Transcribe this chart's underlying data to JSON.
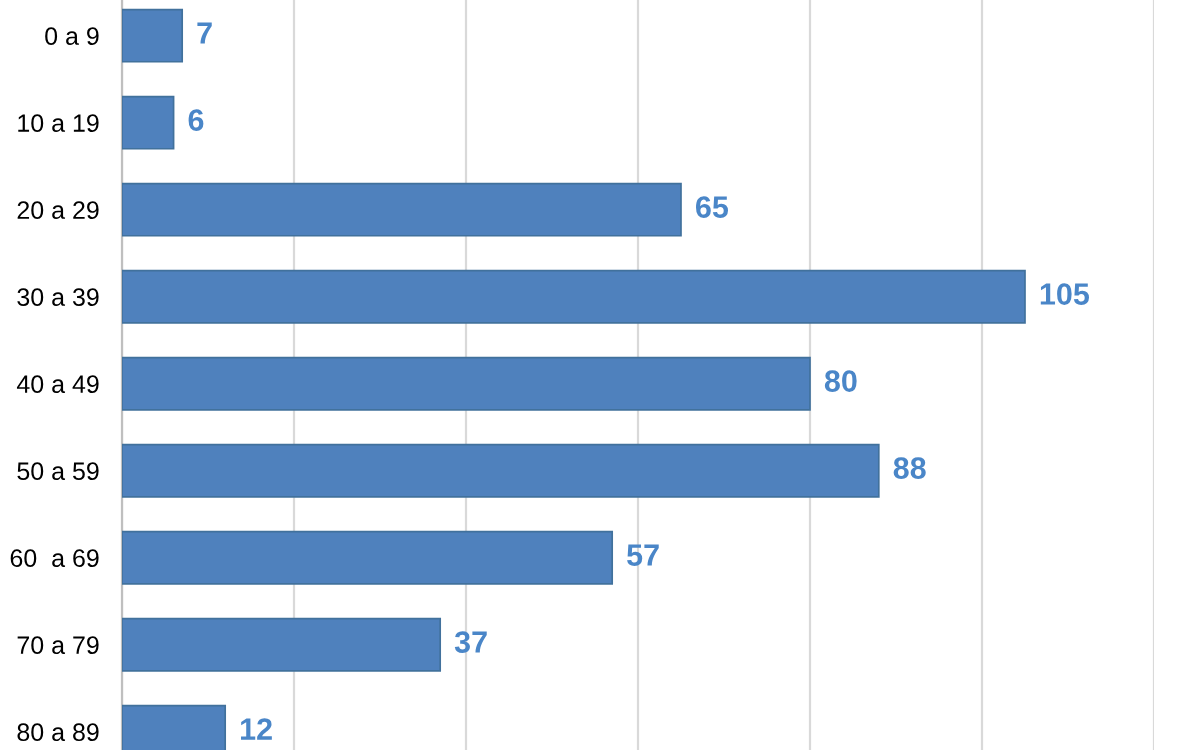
{
  "chart_data": {
    "type": "bar",
    "orientation": "horizontal",
    "categories": [
      "0 a 9",
      "10 a 19",
      "20 a 29",
      "30 a 39",
      "40 a 49",
      "50 a 59",
      "60  a 69",
      "70 a 79",
      "80 a 89"
    ],
    "values": [
      7,
      6,
      65,
      105,
      80,
      88,
      57,
      37,
      12
    ],
    "color": "#4f81bd",
    "data_labels": true,
    "grid": "x",
    "tick_labels": "y",
    "xlim": [
      0,
      120
    ],
    "xticks": [
      {
        "value": 0,
        "label": null
      },
      {
        "value": 20,
        "label": null
      },
      {
        "value": 40,
        "label": null
      },
      {
        "value": 60,
        "label": null
      },
      {
        "value": 80,
        "label": null
      },
      {
        "value": 100,
        "label": null
      },
      {
        "value": 120,
        "label": null
      }
    ]
  }
}
